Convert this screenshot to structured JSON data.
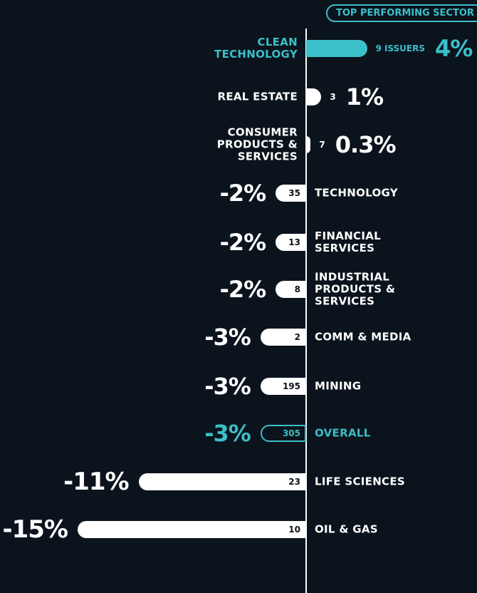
{
  "chart_data": {
    "type": "bar",
    "badge": "TOP PERFORMING SECTOR",
    "issuers_unit": "ISSUERS",
    "categories": [
      "CLEAN TECHNOLOGY",
      "REAL ESTATE",
      "CONSUMER PRODUCTS & SERVICES",
      "TECHNOLOGY",
      "FINANCIAL SERVICES",
      "INDUSTRIAL PRODUCTS & SERVICES",
      "COMM & MEDIA",
      "MINING",
      "OVERALL",
      "LIFE SCIENCES",
      "OIL & GAS"
    ],
    "values": [
      4,
      1,
      0.3,
      -2,
      -2,
      -2,
      -3,
      -3,
      -3,
      -11,
      -15
    ],
    "value_labels": [
      "4%",
      "1%",
      "0.3%",
      "-2%",
      "-2%",
      "-2%",
      "-3%",
      "-3%",
      "-3%",
      "-11%",
      "-15%"
    ],
    "issuers": [
      9,
      3,
      7,
      35,
      13,
      8,
      2,
      195,
      305,
      23,
      10
    ],
    "colors": [
      "#3bbfc9",
      "#ffffff",
      "#ffffff",
      "#ffffff",
      "#ffffff",
      "#ffffff",
      "#ffffff",
      "#ffffff",
      "#3bbfc9",
      "#ffffff",
      "#ffffff"
    ],
    "bar_styles": [
      "fill",
      "fill",
      "fill",
      "fill",
      "fill",
      "fill",
      "fill",
      "fill",
      "outline",
      "fill",
      "fill"
    ]
  }
}
